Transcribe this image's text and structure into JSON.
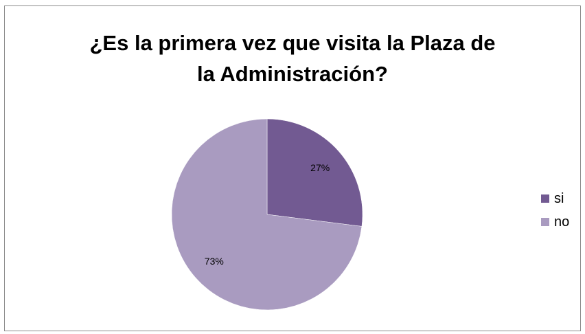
{
  "chart_data": {
    "type": "pie",
    "title_lines": [
      "¿Es la primera vez que visita la Plaza de",
      "la Administración?"
    ],
    "categories": [
      "si",
      "no"
    ],
    "values": [
      27,
      73
    ],
    "labels": [
      "27%",
      "73%"
    ],
    "colors": [
      "#725a92",
      "#a99bc0"
    ],
    "start_angle_deg": 0,
    "direction": "clockwise",
    "legend_position": "right"
  }
}
